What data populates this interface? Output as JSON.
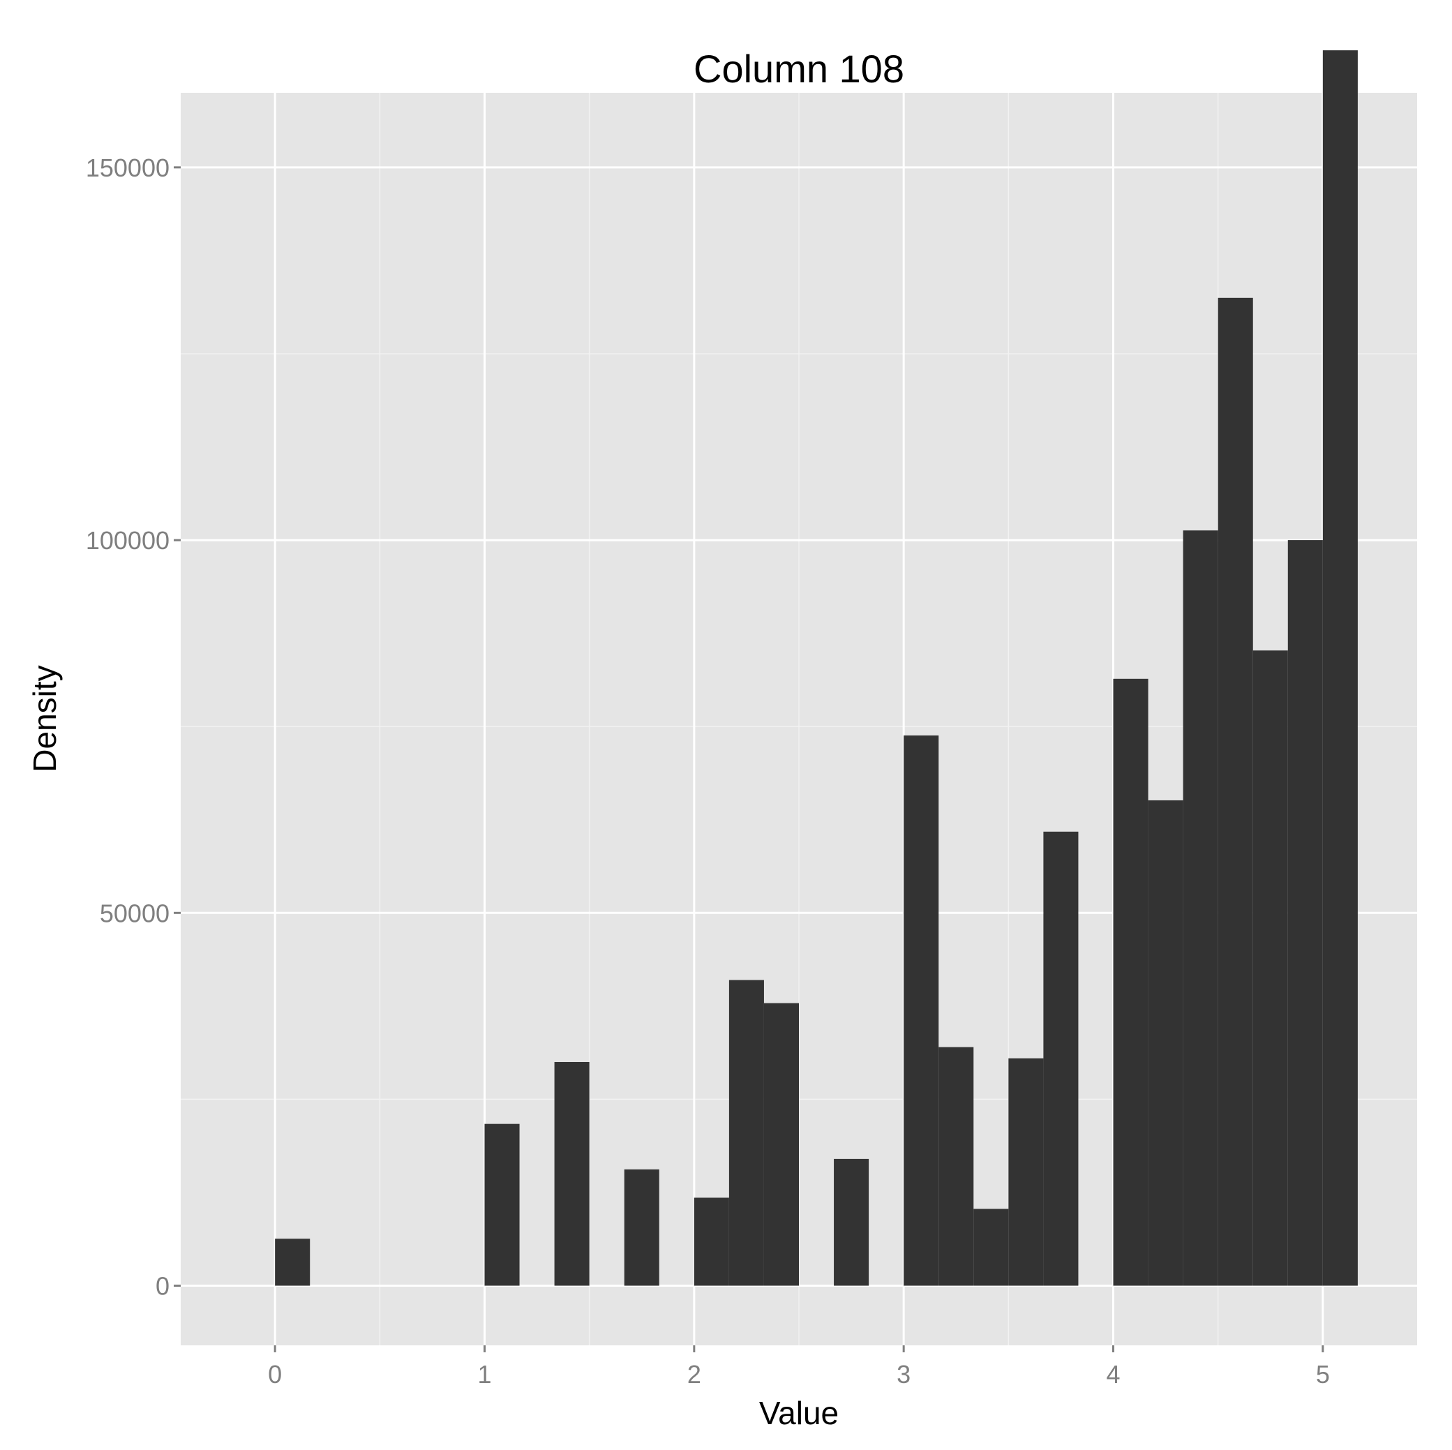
{
  "chart_data": {
    "type": "bar",
    "title": "Column 108",
    "xlabel": "Value",
    "ylabel": "Density",
    "xlim": [
      -0.45,
      5.45
    ],
    "ylim": [
      -8000,
      160000
    ],
    "x_ticks": [
      0,
      1,
      2,
      3,
      4,
      5
    ],
    "x_tick_labels": [
      "0",
      "1",
      "2",
      "3",
      "4",
      "5"
    ],
    "y_ticks": [
      0,
      50000,
      100000,
      150000
    ],
    "y_tick_labels": [
      "0",
      "50000",
      "100000",
      "150000"
    ],
    "bin_width": 0.1667,
    "bins": [
      {
        "x0": 0.0,
        "x1": 0.1667,
        "value": 6300
      },
      {
        "x0": 1.0,
        "x1": 1.1667,
        "value": 21700
      },
      {
        "x0": 1.3333,
        "x1": 1.5,
        "value": 30000
      },
      {
        "x0": 1.6667,
        "x1": 1.8333,
        "value": 15600
      },
      {
        "x0": 2.0,
        "x1": 2.1667,
        "value": 11800
      },
      {
        "x0": 2.1667,
        "x1": 2.3333,
        "value": 41000
      },
      {
        "x0": 2.3333,
        "x1": 2.5,
        "value": 37900
      },
      {
        "x0": 2.6667,
        "x1": 2.8333,
        "value": 17000
      },
      {
        "x0": 3.0,
        "x1": 3.1667,
        "value": 73800
      },
      {
        "x0": 3.1667,
        "x1": 3.3333,
        "value": 32000
      },
      {
        "x0": 3.3333,
        "x1": 3.5,
        "value": 10300
      },
      {
        "x0": 3.5,
        "x1": 3.6667,
        "value": 30500
      },
      {
        "x0": 3.6667,
        "x1": 3.8333,
        "value": 60900
      },
      {
        "x0": 4.0,
        "x1": 4.1667,
        "value": 81400
      },
      {
        "x0": 4.1667,
        "x1": 4.3333,
        "value": 65100
      },
      {
        "x0": 4.3333,
        "x1": 4.5,
        "value": 101300
      },
      {
        "x0": 4.5,
        "x1": 4.6667,
        "value": 132500
      },
      {
        "x0": 4.6667,
        "x1": 4.8333,
        "value": 85200
      },
      {
        "x0": 4.8333,
        "x1": 5.0,
        "value": 100000
      },
      {
        "x0": 5.0,
        "x1": 5.1667,
        "value": 165700
      }
    ],
    "grid": true,
    "colors": {
      "panel_background": "#e5e5e5",
      "grid_major": "#ffffff",
      "grid_minor": "#f2f2f2",
      "bar_fill": "#333333",
      "tick_text": "#7f7f7f"
    }
  }
}
